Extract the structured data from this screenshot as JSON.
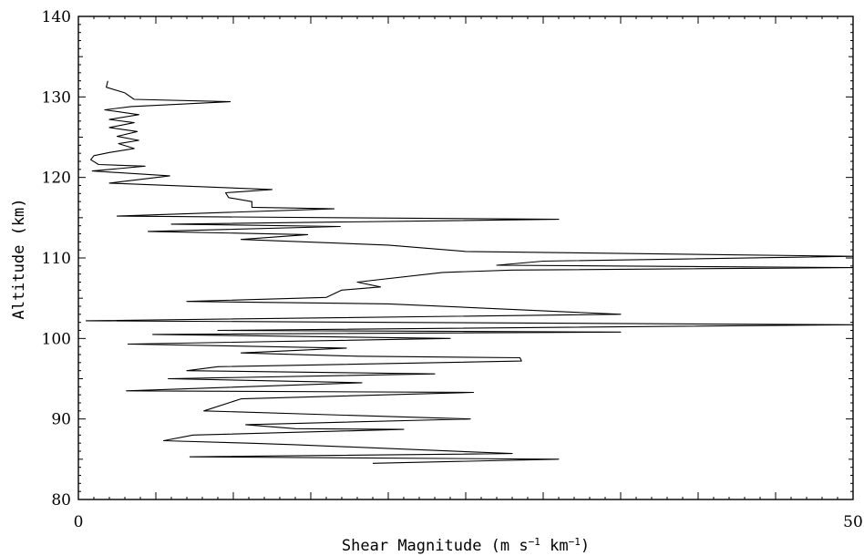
{
  "chart_data": {
    "type": "line",
    "title": "",
    "xlabel": "Shear Magnitude (m s",
    "xlabel_sup1": "−1",
    "xlabel_mid": " km",
    "xlabel_sup2": "−1",
    "xlabel_end": ")",
    "ylabel": "Altitude (km)",
    "xlim": [
      0,
      50
    ],
    "ylim": [
      80,
      140
    ],
    "x_ticks": [
      0,
      50
    ],
    "y_ticks": [
      80,
      90,
      100,
      110,
      120,
      130,
      140
    ],
    "grid": false,
    "series": [
      {
        "color": "#000000",
        "points": [
          [
            1.9,
            132.0
          ],
          [
            1.8,
            131.2
          ],
          [
            3.0,
            130.5
          ],
          [
            3.6,
            129.7
          ],
          [
            9.8,
            129.4
          ],
          [
            3.4,
            128.8
          ],
          [
            1.7,
            128.4
          ],
          [
            3.9,
            127.8
          ],
          [
            2.0,
            127.2
          ],
          [
            3.6,
            126.8
          ],
          [
            2.0,
            126.2
          ],
          [
            3.8,
            125.7
          ],
          [
            2.5,
            125.1
          ],
          [
            3.9,
            124.6
          ],
          [
            2.6,
            124.2
          ],
          [
            3.6,
            123.6
          ],
          [
            2.0,
            123.1
          ],
          [
            1.0,
            122.7
          ],
          [
            0.8,
            122.2
          ],
          [
            1.3,
            121.6
          ],
          [
            4.3,
            121.4
          ],
          [
            0.9,
            120.8
          ],
          [
            5.9,
            120.2
          ],
          [
            2.0,
            119.3
          ],
          [
            12.5,
            118.5
          ],
          [
            9.5,
            118.1
          ],
          [
            9.7,
            117.5
          ],
          [
            11.2,
            117.0
          ],
          [
            11.2,
            116.3
          ],
          [
            16.5,
            116.1
          ],
          [
            2.5,
            115.2
          ],
          [
            31.0,
            114.8
          ],
          [
            6.0,
            114.2
          ],
          [
            16.9,
            113.9
          ],
          [
            4.5,
            113.3
          ],
          [
            14.8,
            112.9
          ],
          [
            10.5,
            112.3
          ],
          [
            20.0,
            111.6
          ],
          [
            25.0,
            110.8
          ],
          [
            50.0,
            110.2
          ],
          [
            30.0,
            109.6
          ],
          [
            27.0,
            109.1
          ],
          [
            50.0,
            108.8
          ],
          [
            28.0,
            108.5
          ],
          [
            23.5,
            108.2
          ],
          [
            18.0,
            107.0
          ],
          [
            19.5,
            106.4
          ],
          [
            17.0,
            106.0
          ],
          [
            16.0,
            105.1
          ],
          [
            7.0,
            104.6
          ],
          [
            20.0,
            104.3
          ],
          [
            35.0,
            103.0
          ],
          [
            0.5,
            102.2
          ],
          [
            50.0,
            101.7
          ],
          [
            9.0,
            101.0
          ],
          [
            35.0,
            100.8
          ],
          [
            4.8,
            100.5
          ],
          [
            24.0,
            100.0
          ],
          [
            3.2,
            99.3
          ],
          [
            17.3,
            98.8
          ],
          [
            10.5,
            98.2
          ],
          [
            18.0,
            97.8
          ],
          [
            28.5,
            97.6
          ],
          [
            28.6,
            97.2
          ],
          [
            9.0,
            96.5
          ],
          [
            7.0,
            96.0
          ],
          [
            23.0,
            95.6
          ],
          [
            5.8,
            95.0
          ],
          [
            18.3,
            94.5
          ],
          [
            3.1,
            93.5
          ],
          [
            25.5,
            93.3
          ],
          [
            10.5,
            92.5
          ],
          [
            8.1,
            91.0
          ],
          [
            25.3,
            90.0
          ],
          [
            10.8,
            89.3
          ],
          [
            14.0,
            88.8
          ],
          [
            21.0,
            88.7
          ],
          [
            7.4,
            88.0
          ],
          [
            5.5,
            87.3
          ],
          [
            11.0,
            87.0
          ],
          [
            14.0,
            86.8
          ],
          [
            28.0,
            85.7
          ],
          [
            7.2,
            85.3
          ],
          [
            31.0,
            85.0
          ],
          [
            19.0,
            84.5
          ]
        ]
      }
    ]
  }
}
